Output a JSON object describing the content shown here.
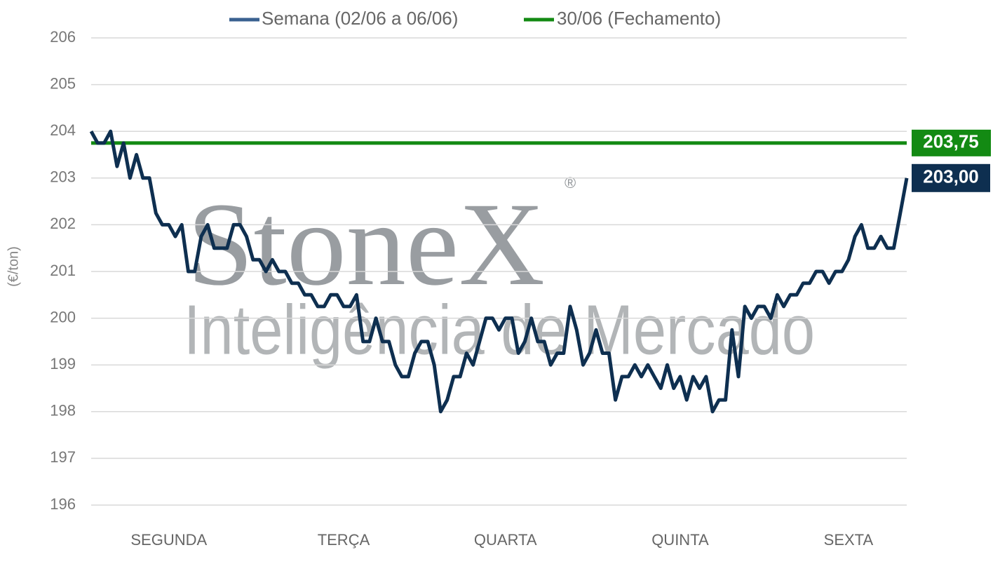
{
  "chart_data": {
    "type": "line",
    "y_label": "(€/ton)",
    "watermark": {
      "brand": "StoneX",
      "tagline": "Inteligência de Mercado"
    },
    "categories": [
      null,
      null,
      null,
      null,
      null,
      null,
      null,
      null,
      null,
      null,
      null,
      null,
      "SEGUNDA",
      null,
      null,
      null,
      null,
      null,
      null,
      null,
      null,
      null,
      null,
      null,
      null,
      null,
      null,
      null,
      null,
      null,
      null,
      null,
      null,
      null,
      null,
      null,
      null,
      null,
      null,
      "TERÇA",
      null,
      null,
      null,
      null,
      null,
      null,
      null,
      null,
      null,
      null,
      null,
      null,
      null,
      null,
      null,
      null,
      null,
      null,
      null,
      null,
      null,
      null,
      null,
      null,
      "QUARTA",
      null,
      null,
      null,
      null,
      null,
      null,
      null,
      null,
      null,
      null,
      null,
      null,
      null,
      null,
      null,
      null,
      null,
      null,
      null,
      null,
      null,
      null,
      null,
      null,
      null,
      null,
      "QUINTA",
      null,
      null,
      null,
      null,
      null,
      null,
      null,
      null,
      null,
      null,
      null,
      null,
      null,
      null,
      null,
      null,
      null,
      null,
      null,
      null,
      null,
      null,
      null,
      null,
      null,
      "SEXTA",
      null,
      null,
      null,
      null,
      null,
      null,
      null,
      null,
      null
    ],
    "series": [
      {
        "name": "Semana (02/06 a 06/06)",
        "color": "#0e2f50",
        "legend_color": "#3a6190",
        "last_label": "203,00",
        "values": [
          204.0,
          203.75,
          203.75,
          204.0,
          203.25,
          203.75,
          203.0,
          203.5,
          203.0,
          203.0,
          202.25,
          202.0,
          202.0,
          201.75,
          202.0,
          201.0,
          201.0,
          201.75,
          202.0,
          201.5,
          201.5,
          201.5,
          202.0,
          202.0,
          201.75,
          201.25,
          201.25,
          201.0,
          201.25,
          201.0,
          201.0,
          200.75,
          200.75,
          200.5,
          200.5,
          200.25,
          200.25,
          200.5,
          200.5,
          200.25,
          200.25,
          200.5,
          199.5,
          199.5,
          200.0,
          199.5,
          199.5,
          199.0,
          198.75,
          198.75,
          199.25,
          199.5,
          199.5,
          199.0,
          198.0,
          198.25,
          198.75,
          198.75,
          199.25,
          199.0,
          199.5,
          200.0,
          200.0,
          199.75,
          200.0,
          200.0,
          199.25,
          199.5,
          200.0,
          199.5,
          199.5,
          199.0,
          199.25,
          199.25,
          200.25,
          199.75,
          199.0,
          199.25,
          199.75,
          199.25,
          199.25,
          198.25,
          198.75,
          198.75,
          199.0,
          198.75,
          199.0,
          198.75,
          198.5,
          199.0,
          198.5,
          198.75,
          198.25,
          198.75,
          198.5,
          198.75,
          198.0,
          198.25,
          198.25,
          199.75,
          198.75,
          200.25,
          200.0,
          200.25,
          200.25,
          200.0,
          200.5,
          200.25,
          200.5,
          200.5,
          200.75,
          200.75,
          201.0,
          201.0,
          200.75,
          201.0,
          201.0,
          201.25,
          201.75,
          202.0,
          201.5,
          201.5,
          201.75,
          201.5,
          201.5,
          202.25,
          203.0
        ]
      }
    ],
    "reference_line": {
      "name": "30/06 (Fechamento)",
      "value": 203.75,
      "label": "203,75",
      "color": "#138a13"
    },
    "ylim": [
      196,
      206
    ],
    "yticks": [
      196,
      197,
      198,
      199,
      200,
      201,
      202,
      203,
      204,
      205,
      206
    ],
    "grid": true
  }
}
